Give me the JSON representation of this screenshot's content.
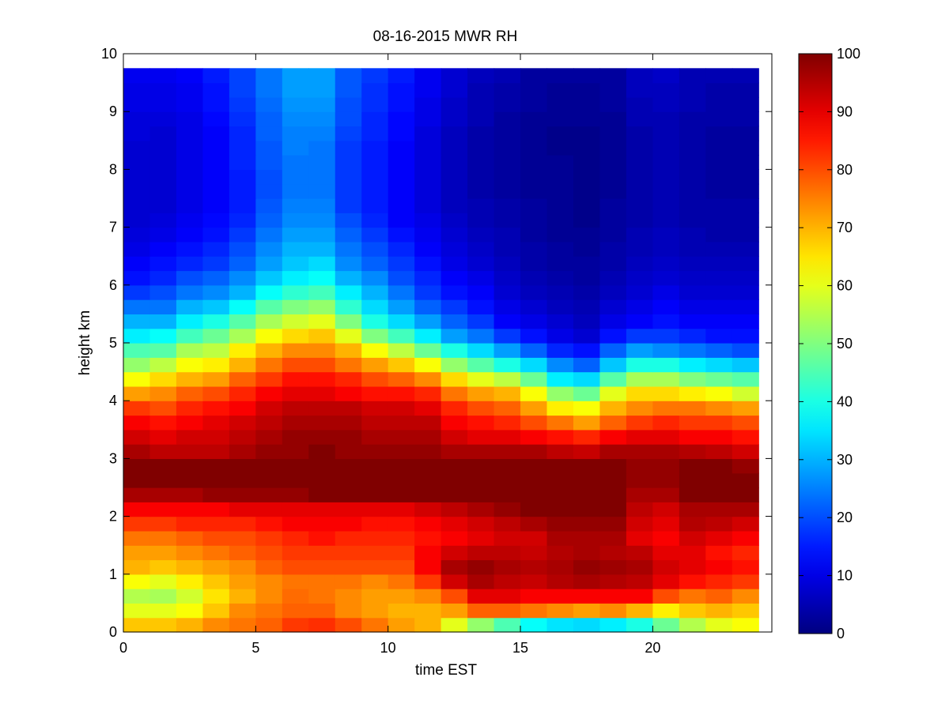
{
  "chart_data": {
    "type": "heatmap",
    "title": "08-16-2015 MWR RH",
    "xlabel": "time EST",
    "ylabel": "height km",
    "xlim": [
      0,
      24.5
    ],
    "ylim": [
      0,
      10
    ],
    "xticks": [
      0,
      5,
      10,
      15,
      20
    ],
    "yticks": [
      0,
      1,
      2,
      3,
      4,
      5,
      6,
      7,
      8,
      9,
      10
    ],
    "colorbar": {
      "colormap": "jet",
      "clim": [
        0,
        100
      ],
      "ticks": [
        0,
        10,
        20,
        30,
        40,
        50,
        60,
        70,
        80,
        90,
        100
      ]
    },
    "x": [
      0,
      1,
      2,
      3,
      4,
      5,
      6,
      7,
      8,
      9,
      10,
      11,
      12,
      13,
      14,
      15,
      16,
      17,
      18,
      19,
      20,
      21,
      22,
      23
    ],
    "heights": [
      0.0,
      0.25,
      0.5,
      0.75,
      1.0,
      1.25,
      1.5,
      1.75,
      2.0,
      2.25,
      2.5,
      2.75,
      3.0,
      3.25,
      3.5,
      3.75,
      4.0,
      4.25,
      4.5,
      4.75,
      5.0,
      5.25,
      5.5,
      5.75,
      6.0,
      6.25,
      6.5,
      6.75,
      7.0,
      7.25,
      7.5,
      7.75,
      8.0,
      8.25,
      8.5,
      8.75,
      9.0,
      9.25,
      9.5
    ],
    "x_step": 1.0,
    "height_step": 0.25,
    "values": [
      [
        68,
        68,
        70,
        74,
        76,
        78,
        82,
        83,
        80,
        76,
        72,
        70,
        60,
        52,
        45,
        38,
        35,
        34,
        36,
        40,
        48,
        55,
        60,
        62
      ],
      [
        60,
        60,
        62,
        68,
        74,
        76,
        78,
        78,
        74,
        72,
        70,
        70,
        72,
        78,
        78,
        76,
        74,
        72,
        74,
        70,
        64,
        68,
        70,
        68
      ],
      [
        55,
        54,
        58,
        65,
        70,
        74,
        77,
        76,
        74,
        72,
        72,
        74,
        80,
        90,
        90,
        88,
        88,
        88,
        88,
        88,
        80,
        76,
        78,
        74
      ],
      [
        62,
        60,
        64,
        68,
        72,
        74,
        76,
        76,
        76,
        74,
        76,
        82,
        92,
        96,
        94,
        93,
        95,
        96,
        95,
        94,
        90,
        86,
        84,
        82
      ],
      [
        70,
        68,
        70,
        72,
        74,
        78,
        80,
        80,
        80,
        80,
        80,
        88,
        96,
        98,
        96,
        95,
        96,
        98,
        97,
        96,
        92,
        90,
        88,
        86
      ],
      [
        72,
        72,
        74,
        76,
        78,
        80,
        82,
        82,
        82,
        82,
        82,
        88,
        92,
        94,
        94,
        93,
        95,
        96,
        95,
        94,
        90,
        90,
        86,
        84
      ],
      [
        76,
        76,
        78,
        80,
        80,
        82,
        84,
        86,
        84,
        84,
        84,
        86,
        88,
        90,
        92,
        92,
        96,
        96,
        96,
        90,
        88,
        92,
        90,
        88
      ],
      [
        82,
        82,
        84,
        84,
        84,
        86,
        88,
        88,
        88,
        86,
        86,
        88,
        90,
        92,
        94,
        96,
        98,
        98,
        98,
        92,
        90,
        95,
        94,
        92
      ],
      [
        88,
        88,
        88,
        88,
        90,
        90,
        90,
        90,
        90,
        90,
        90,
        92,
        94,
        96,
        98,
        100,
        100,
        100,
        100,
        94,
        92,
        96,
        96,
        96
      ],
      [
        96,
        96,
        96,
        98,
        98,
        98,
        98,
        100,
        100,
        100,
        100,
        100,
        100,
        100,
        100,
        100,
        100,
        100,
        100,
        96,
        96,
        100,
        100,
        100
      ],
      [
        100,
        100,
        100,
        100,
        100,
        100,
        100,
        100,
        100,
        100,
        100,
        100,
        100,
        100,
        100,
        100,
        100,
        100,
        100,
        98,
        98,
        100,
        100,
        100
      ],
      [
        100,
        100,
        100,
        100,
        100,
        100,
        100,
        100,
        100,
        100,
        100,
        100,
        100,
        100,
        100,
        100,
        100,
        100,
        100,
        98,
        98,
        100,
        100,
        98
      ],
      [
        96,
        94,
        94,
        94,
        96,
        98,
        98,
        100,
        98,
        98,
        98,
        98,
        96,
        96,
        96,
        96,
        94,
        93,
        96,
        96,
        96,
        95,
        94,
        92
      ],
      [
        92,
        90,
        92,
        92,
        94,
        96,
        98,
        98,
        98,
        96,
        96,
        96,
        92,
        90,
        90,
        88,
        86,
        84,
        88,
        90,
        90,
        88,
        88,
        86
      ],
      [
        88,
        86,
        88,
        90,
        92,
        94,
        96,
        96,
        96,
        94,
        94,
        94,
        88,
        86,
        84,
        80,
        76,
        72,
        78,
        82,
        84,
        82,
        82,
        80
      ],
      [
        82,
        80,
        84,
        86,
        88,
        92,
        94,
        94,
        94,
        92,
        92,
        90,
        84,
        80,
        78,
        72,
        64,
        62,
        70,
        74,
        76,
        76,
        74,
        72
      ],
      [
        72,
        74,
        78,
        80,
        84,
        88,
        90,
        90,
        88,
        86,
        86,
        84,
        76,
        72,
        70,
        62,
        52,
        48,
        60,
        66,
        66,
        64,
        62,
        58
      ],
      [
        62,
        66,
        70,
        72,
        78,
        82,
        86,
        86,
        84,
        80,
        78,
        74,
        66,
        60,
        56,
        48,
        36,
        34,
        46,
        54,
        54,
        50,
        48,
        46
      ],
      [
        52,
        56,
        62,
        64,
        70,
        76,
        80,
        80,
        76,
        72,
        68,
        62,
        52,
        46,
        40,
        34,
        26,
        22,
        32,
        40,
        40,
        36,
        34,
        32
      ],
      [
        45,
        46,
        54,
        56,
        64,
        70,
        74,
        74,
        70,
        62,
        56,
        48,
        40,
        34,
        28,
        22,
        16,
        14,
        22,
        28,
        26,
        24,
        22,
        20
      ],
      [
        36,
        38,
        44,
        48,
        54,
        62,
        66,
        68,
        60,
        50,
        44,
        36,
        28,
        24,
        18,
        14,
        10,
        8,
        14,
        18,
        18,
        16,
        14,
        14
      ],
      [
        30,
        30,
        36,
        40,
        46,
        54,
        58,
        60,
        50,
        40,
        34,
        28,
        22,
        18,
        12,
        10,
        8,
        6,
        10,
        12,
        14,
        12,
        12,
        12
      ],
      [
        24,
        24,
        30,
        32,
        38,
        46,
        50,
        52,
        42,
        34,
        28,
        22,
        18,
        14,
        10,
        8,
        6,
        5,
        8,
        10,
        12,
        10,
        10,
        10
      ],
      [
        18,
        20,
        24,
        26,
        30,
        38,
        42,
        44,
        36,
        30,
        24,
        18,
        14,
        12,
        8,
        6,
        5,
        4,
        6,
        8,
        10,
        8,
        8,
        8
      ],
      [
        14,
        16,
        20,
        22,
        26,
        32,
        36,
        38,
        30,
        26,
        20,
        16,
        12,
        10,
        7,
        5,
        4,
        3,
        5,
        7,
        8,
        7,
        7,
        7
      ],
      [
        12,
        14,
        16,
        18,
        22,
        28,
        32,
        34,
        26,
        22,
        18,
        14,
        10,
        8,
        6,
        4,
        3,
        3,
        4,
        6,
        7,
        6,
        6,
        6
      ],
      [
        10,
        12,
        14,
        16,
        20,
        26,
        30,
        30,
        24,
        20,
        16,
        12,
        9,
        7,
        5,
        4,
        3,
        2,
        4,
        5,
        6,
        5,
        5,
        5
      ],
      [
        9,
        10,
        12,
        14,
        18,
        24,
        28,
        28,
        22,
        18,
        14,
        11,
        8,
        6,
        5,
        3,
        2,
        2,
        3,
        5,
        6,
        5,
        4,
        4
      ],
      [
        8,
        9,
        11,
        13,
        16,
        22,
        26,
        26,
        20,
        16,
        12,
        10,
        7,
        5,
        4,
        3,
        2,
        1,
        3,
        4,
        5,
        4,
        4,
        4
      ],
      [
        8,
        8,
        10,
        12,
        15,
        21,
        25,
        25,
        18,
        15,
        12,
        9,
        6,
        5,
        4,
        3,
        2,
        1,
        3,
        4,
        5,
        4,
        4,
        4
      ],
      [
        8,
        8,
        10,
        12,
        15,
        20,
        24,
        24,
        18,
        15,
        12,
        9,
        6,
        4,
        3,
        2,
        2,
        1,
        2,
        4,
        5,
        4,
        3,
        3
      ],
      [
        8,
        8,
        10,
        12,
        15,
        20,
        24,
        24,
        18,
        15,
        12,
        9,
        6,
        4,
        3,
        2,
        2,
        1,
        2,
        4,
        5,
        4,
        3,
        3
      ],
      [
        8,
        8,
        10,
        12,
        16,
        21,
        24,
        24,
        18,
        15,
        12,
        9,
        6,
        4,
        3,
        2,
        2,
        1,
        2,
        4,
        5,
        4,
        3,
        3
      ],
      [
        8,
        8,
        10,
        12,
        16,
        21,
        25,
        24,
        18,
        15,
        12,
        9,
        6,
        4,
        3,
        2,
        1,
        1,
        2,
        4,
        5,
        4,
        3,
        3
      ],
      [
        9,
        8,
        10,
        12,
        16,
        22,
        25,
        25,
        19,
        16,
        13,
        9,
        6,
        4,
        3,
        2,
        1,
        1,
        2,
        4,
        5,
        4,
        3,
        3
      ],
      [
        9,
        9,
        10,
        13,
        17,
        22,
        26,
        26,
        20,
        16,
        13,
        10,
        7,
        5,
        3,
        2,
        2,
        2,
        2,
        5,
        5,
        4,
        4,
        4
      ],
      [
        10,
        10,
        11,
        14,
        18,
        23,
        27,
        27,
        20,
        17,
        14,
        10,
        7,
        5,
        4,
        3,
        2,
        2,
        3,
        5,
        6,
        5,
        4,
        4
      ],
      [
        10,
        10,
        11,
        14,
        19,
        24,
        28,
        28,
        21,
        17,
        14,
        11,
        8,
        5,
        4,
        3,
        2,
        2,
        3,
        6,
        6,
        5,
        4,
        4
      ],
      [
        11,
        11,
        12,
        15,
        19,
        24,
        28,
        28,
        21,
        18,
        15,
        11,
        8,
        6,
        5,
        3,
        3,
        3,
        3,
        6,
        7,
        5,
        5,
        5
      ]
    ]
  }
}
